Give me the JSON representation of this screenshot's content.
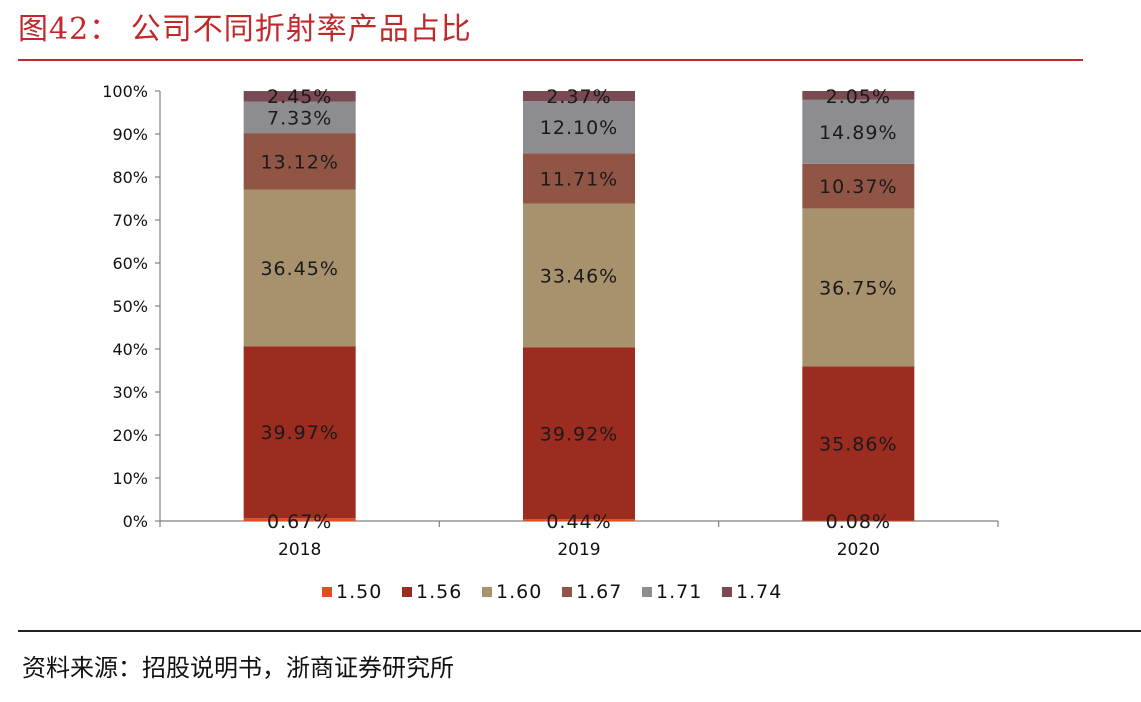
{
  "title": "图42：  公司不同折射率产品占比",
  "source": "资料来源：招股说明书，浙商证券研究所",
  "chart_data": {
    "type": "bar",
    "stacked": true,
    "percent": true,
    "categories": [
      "2018",
      "2019",
      "2020"
    ],
    "series": [
      {
        "name": "1.50",
        "color": "#e0501e",
        "values": [
          0.67,
          0.44,
          0.08
        ],
        "labels": [
          "0.67%",
          "0.44%",
          "0.08%"
        ]
      },
      {
        "name": "1.56",
        "color": "#9b2c1f",
        "values": [
          39.97,
          39.92,
          35.86
        ],
        "labels": [
          "39.97%",
          "39.92%",
          "35.86%"
        ]
      },
      {
        "name": "1.60",
        "color": "#a8916d",
        "values": [
          36.45,
          33.46,
          36.75
        ],
        "labels": [
          "36.45%",
          "33.46%",
          "36.75%"
        ]
      },
      {
        "name": "1.67",
        "color": "#905545",
        "values": [
          13.12,
          11.71,
          10.37
        ],
        "labels": [
          "13.12%",
          "11.71%",
          "10.37%"
        ]
      },
      {
        "name": "1.71",
        "color": "#8d8c90",
        "values": [
          7.33,
          12.1,
          14.89
        ],
        "labels": [
          "7.33%",
          "12.10%",
          "14.89%"
        ]
      },
      {
        "name": "1.74",
        "color": "#7a4a52",
        "values": [
          2.45,
          2.37,
          2.05
        ],
        "labels": [
          "2.45%",
          "2.37%",
          "2.05%"
        ]
      }
    ],
    "yticks": [
      "0%",
      "10%",
      "20%",
      "30%",
      "40%",
      "50%",
      "60%",
      "70%",
      "80%",
      "90%",
      "100%"
    ],
    "ylim": [
      0,
      100
    ],
    "legend": "bottom"
  }
}
